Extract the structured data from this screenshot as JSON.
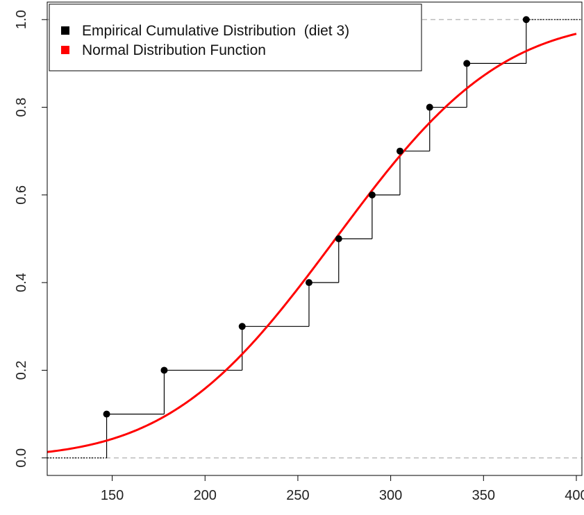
{
  "chart_data": {
    "type": "line",
    "xlim": [
      115,
      403
    ],
    "ylim": [
      -0.04,
      1.04
    ],
    "x_ticks": [
      150,
      200,
      250,
      300,
      350,
      400
    ],
    "y_ticks": [
      0.0,
      0.2,
      0.4,
      0.6,
      0.8,
      1.0
    ],
    "x_tick_labels": [
      "150",
      "200",
      "250",
      "300",
      "350",
      "400"
    ],
    "y_tick_labels": [
      "0.0",
      "0.2",
      "0.4",
      "0.6",
      "0.8",
      "1.0"
    ],
    "reference_lines": [
      0,
      1
    ],
    "legend": {
      "placement": "top-left",
      "entries": [
        {
          "label": "Empirical Cumulative Distribution  (diet 3)",
          "color": "#000000"
        },
        {
          "label": "Normal Distribution Function",
          "color": "#ff0000"
        }
      ]
    },
    "series": [
      {
        "name": "Empirical Cumulative Distribution  (diet 3)",
        "kind": "step",
        "color": "#000000",
        "x": [
          147,
          178,
          220,
          256,
          272,
          290,
          305,
          321,
          341,
          373
        ],
        "y": [
          0.1,
          0.2,
          0.3,
          0.4,
          0.5,
          0.6,
          0.7,
          0.8,
          0.9,
          1.0
        ]
      },
      {
        "name": "Normal Distribution Function",
        "kind": "curve",
        "color": "#ff0000",
        "mean": 270.3,
        "sd": 70.2
      }
    ]
  }
}
